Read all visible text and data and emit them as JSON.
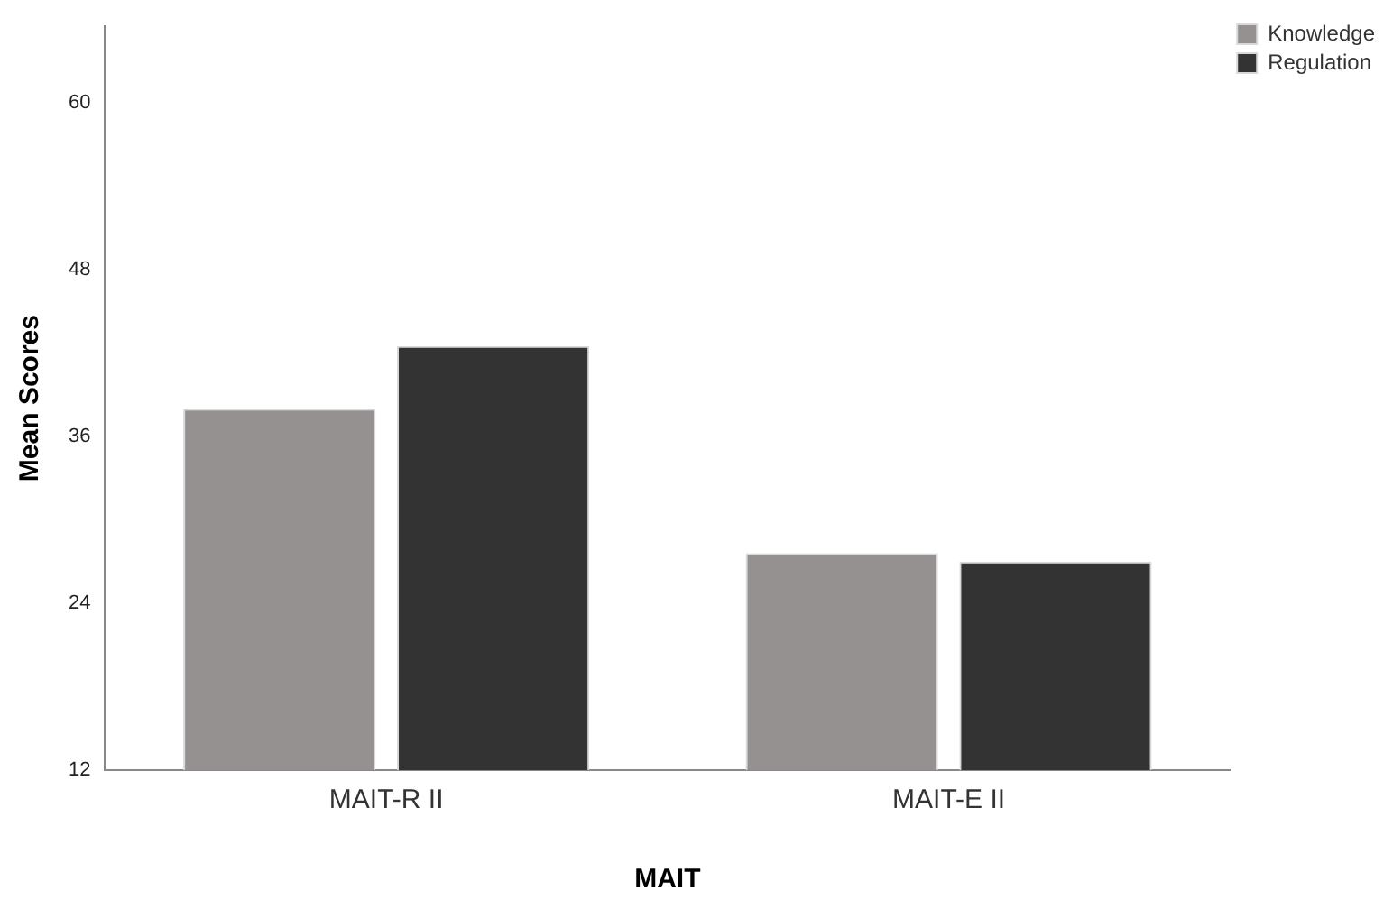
{
  "chart_data": {
    "type": "bar",
    "xlabel": "MAIT",
    "ylabel": "Mean Scores",
    "categories": [
      "MAIT-R II",
      "MAIT-E II"
    ],
    "series": [
      {
        "name": "Knowledge",
        "color": "#949190",
        "values": [
          38.0,
          27.6
        ]
      },
      {
        "name": "Regulation",
        "color": "#333333",
        "values": [
          42.5,
          27.0
        ]
      }
    ],
    "ylim": [
      12,
      65.5
    ],
    "yticks": [
      12,
      24,
      36,
      48,
      60
    ],
    "grid": false,
    "legend": "top right"
  }
}
